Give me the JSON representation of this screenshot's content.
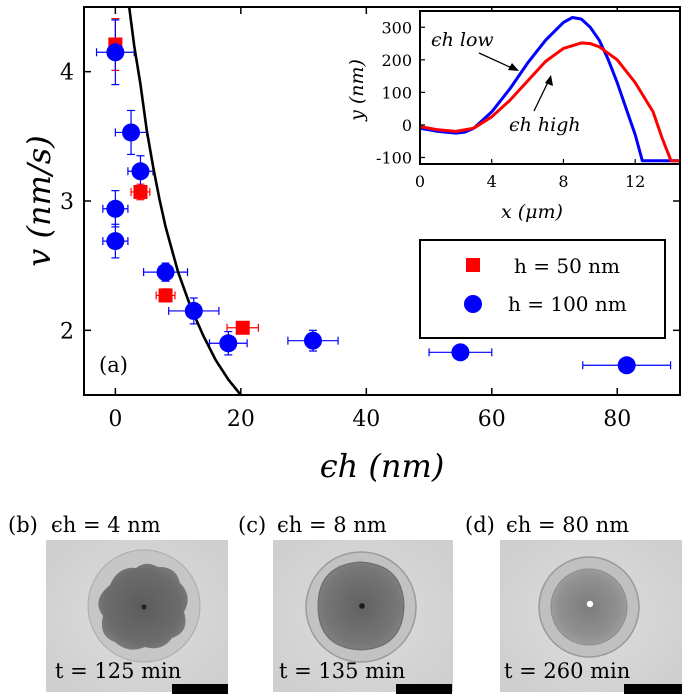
{
  "chart_data": [
    {
      "type": "scatter",
      "panel_label": "(a)",
      "xlabel": "ϵh (nm)",
      "ylabel": "v (nm/s)",
      "xlim": [
        -5,
        90
      ],
      "ylim": [
        1.5,
        4.5
      ],
      "xticks": [
        0,
        20,
        40,
        60,
        80
      ],
      "yticks": [
        2,
        3,
        4
      ],
      "legend_position": "bottom-right",
      "series": [
        {
          "name": "h = 50 nm",
          "marker": "square",
          "color": "#ff0000",
          "points": [
            {
              "x": 0,
              "y": 4.21,
              "xerr": 0.5,
              "yerr": 0.2
            },
            {
              "x": 4,
              "y": 3.07,
              "xerr": 1.5,
              "yerr": 0.06
            },
            {
              "x": 8,
              "y": 2.27,
              "xerr": 1.5,
              "yerr": 0.05
            },
            {
              "x": 20.3,
              "y": 2.02,
              "xerr": 2.5,
              "yerr": 0.03
            }
          ]
        },
        {
          "name": "h = 100 nm",
          "marker": "circle",
          "color": "#0000ff",
          "points": [
            {
              "x": 0,
              "y": 4.15,
              "xerr": 3,
              "yerr": 0.25
            },
            {
              "x": 0,
              "y": 2.94,
              "xerr": 2,
              "yerr": 0.14
            },
            {
              "x": 0,
              "y": 2.69,
              "xerr": 2,
              "yerr": 0.13
            },
            {
              "x": 2.5,
              "y": 3.53,
              "xerr": 2.5,
              "yerr": 0.17
            },
            {
              "x": 4,
              "y": 3.23,
              "xerr": 2,
              "yerr": 0.12
            },
            {
              "x": 8,
              "y": 2.45,
              "xerr": 3.5,
              "yerr": 0.07
            },
            {
              "x": 12.5,
              "y": 2.15,
              "xerr": 4,
              "yerr": 0.1
            },
            {
              "x": 18,
              "y": 1.9,
              "xerr": 3,
              "yerr": 0.09
            },
            {
              "x": 31.5,
              "y": 1.92,
              "xerr": 4,
              "yerr": 0.08
            },
            {
              "x": 55,
              "y": 1.83,
              "xerr": 5,
              "yerr": 0.03
            },
            {
              "x": 81.5,
              "y": 1.73,
              "xerr": 7,
              "yerr": 0.03
            }
          ]
        }
      ],
      "fit_curve": {
        "color": "#000000",
        "points": [
          [
            2.2,
            4.5
          ],
          [
            3,
            4.2
          ],
          [
            4,
            3.9
          ],
          [
            5,
            3.55
          ],
          [
            6,
            3.27
          ],
          [
            7,
            3.02
          ],
          [
            8,
            2.8
          ],
          [
            10,
            2.45
          ],
          [
            12,
            2.18
          ],
          [
            14,
            1.96
          ],
          [
            16,
            1.77
          ],
          [
            18,
            1.62
          ],
          [
            20,
            1.5
          ]
        ]
      }
    },
    {
      "type": "line",
      "xlabel": "x (μm)",
      "ylabel": "y (nm)",
      "xlim": [
        0,
        14.5
      ],
      "ylim": [
        -120,
        350
      ],
      "xticks": [
        0,
        4,
        8,
        12
      ],
      "yticks": [
        -100,
        0,
        100,
        200,
        300
      ],
      "annotations": [
        "ϵh low",
        "ϵh high"
      ],
      "series": [
        {
          "label": "ϵh low",
          "color": "#0000ff",
          "x": [
            0,
            1,
            2,
            2.5,
            3,
            4,
            5,
            6,
            7,
            8,
            8.5,
            9,
            9.5,
            10,
            10.5,
            11,
            11.5,
            12,
            12.4,
            13,
            14.5
          ],
          "y": [
            -10,
            -20,
            -25,
            -22,
            -10,
            40,
            110,
            190,
            260,
            315,
            330,
            325,
            300,
            260,
            200,
            130,
            50,
            -30,
            -110,
            -110,
            -110
          ]
        },
        {
          "label": "ϵh high",
          "color": "#ff0000",
          "x": [
            0,
            1,
            2,
            3,
            4,
            5,
            6,
            7,
            8,
            9,
            9.5,
            10,
            11,
            12,
            13,
            13.5,
            14,
            14.5
          ],
          "y": [
            -5,
            -15,
            -20,
            -10,
            25,
            75,
            135,
            195,
            235,
            252,
            250,
            240,
            200,
            130,
            40,
            -40,
            -110,
            -110
          ]
        }
      ]
    }
  ],
  "panels": [
    {
      "label": "(b)",
      "title": "ϵh = 4 nm",
      "time": "t = 125 min"
    },
    {
      "label": "(c)",
      "title": "ϵh = 8 nm",
      "time": "t = 135 min"
    },
    {
      "label": "(d)",
      "title": "ϵh = 80 nm",
      "time": "t = 260 min"
    }
  ]
}
